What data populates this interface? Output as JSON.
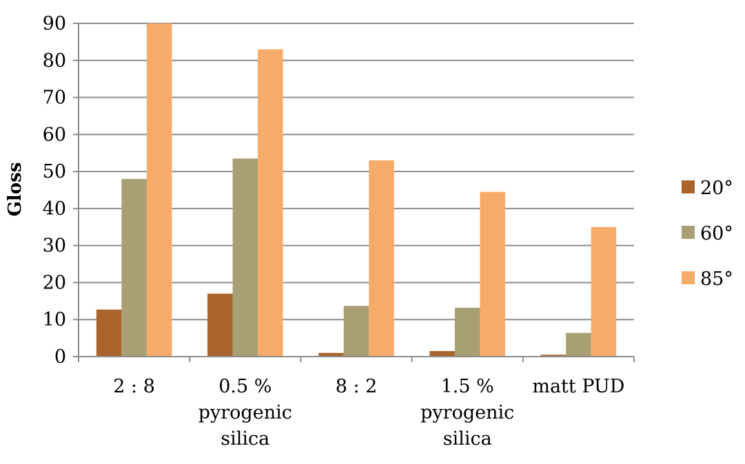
{
  "chart_data": {
    "type": "bar",
    "title": "",
    "xlabel": "",
    "ylabel": "Gloss",
    "ylim": [
      0,
      90
    ],
    "yticks": [
      0,
      10,
      20,
      30,
      40,
      50,
      60,
      70,
      80,
      90
    ],
    "categories": [
      [
        "2 : 8"
      ],
      [
        "0.5 %",
        "pyrogenic",
        "silica"
      ],
      [
        "8 : 2"
      ],
      [
        "1.5 %",
        "pyrogenic",
        "silica"
      ],
      [
        "matt PUD"
      ]
    ],
    "series": [
      {
        "name": "20°",
        "color": "#A9632B",
        "values": [
          12.7,
          17.0,
          1.0,
          1.5,
          0.5
        ]
      },
      {
        "name": "60°",
        "color": "#A99F74",
        "values": [
          48.0,
          53.5,
          13.7,
          13.2,
          6.4
        ]
      },
      {
        "name": "85°",
        "color": "#F7AB68",
        "values": [
          90.0,
          83.0,
          53.0,
          44.5,
          35.0
        ]
      }
    ],
    "grid": true,
    "legend_position": "right"
  }
}
